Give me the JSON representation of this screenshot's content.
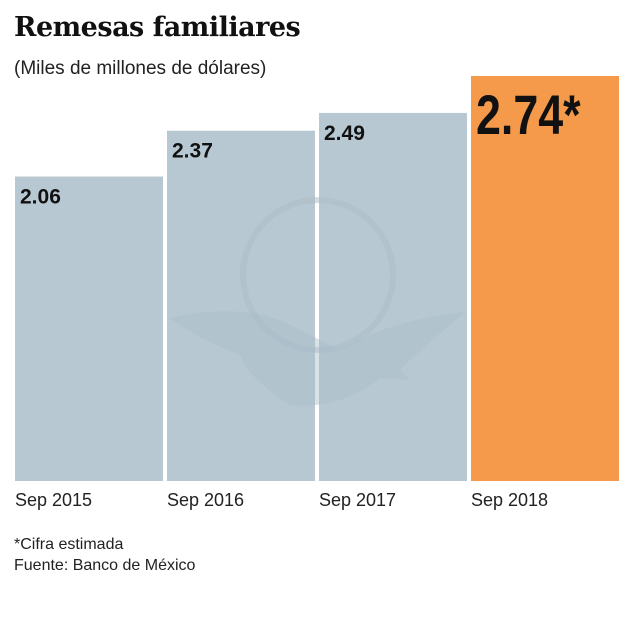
{
  "chart_data": {
    "type": "bar",
    "title": "Remesas familiares",
    "subtitle": "(Miles de millones de dólares)",
    "categories": [
      "Sep 2015",
      "Sep 2016",
      "Sep 2017",
      "Sep 2018"
    ],
    "values": [
      2.06,
      2.37,
      2.49,
      2.74
    ],
    "data_labels": [
      "2.06",
      "2.37",
      "2.49",
      "2.74*"
    ],
    "highlight_index": 3,
    "ylim": [
      0,
      2.74
    ],
    "grid": false,
    "xlabel": "",
    "ylabel": "",
    "colors": {
      "default": "#b8c8d2",
      "highlight": "#f5994a"
    }
  },
  "footnotes": {
    "estimate": "*Cifra estimada",
    "source": "Fuente: Banco de México"
  }
}
